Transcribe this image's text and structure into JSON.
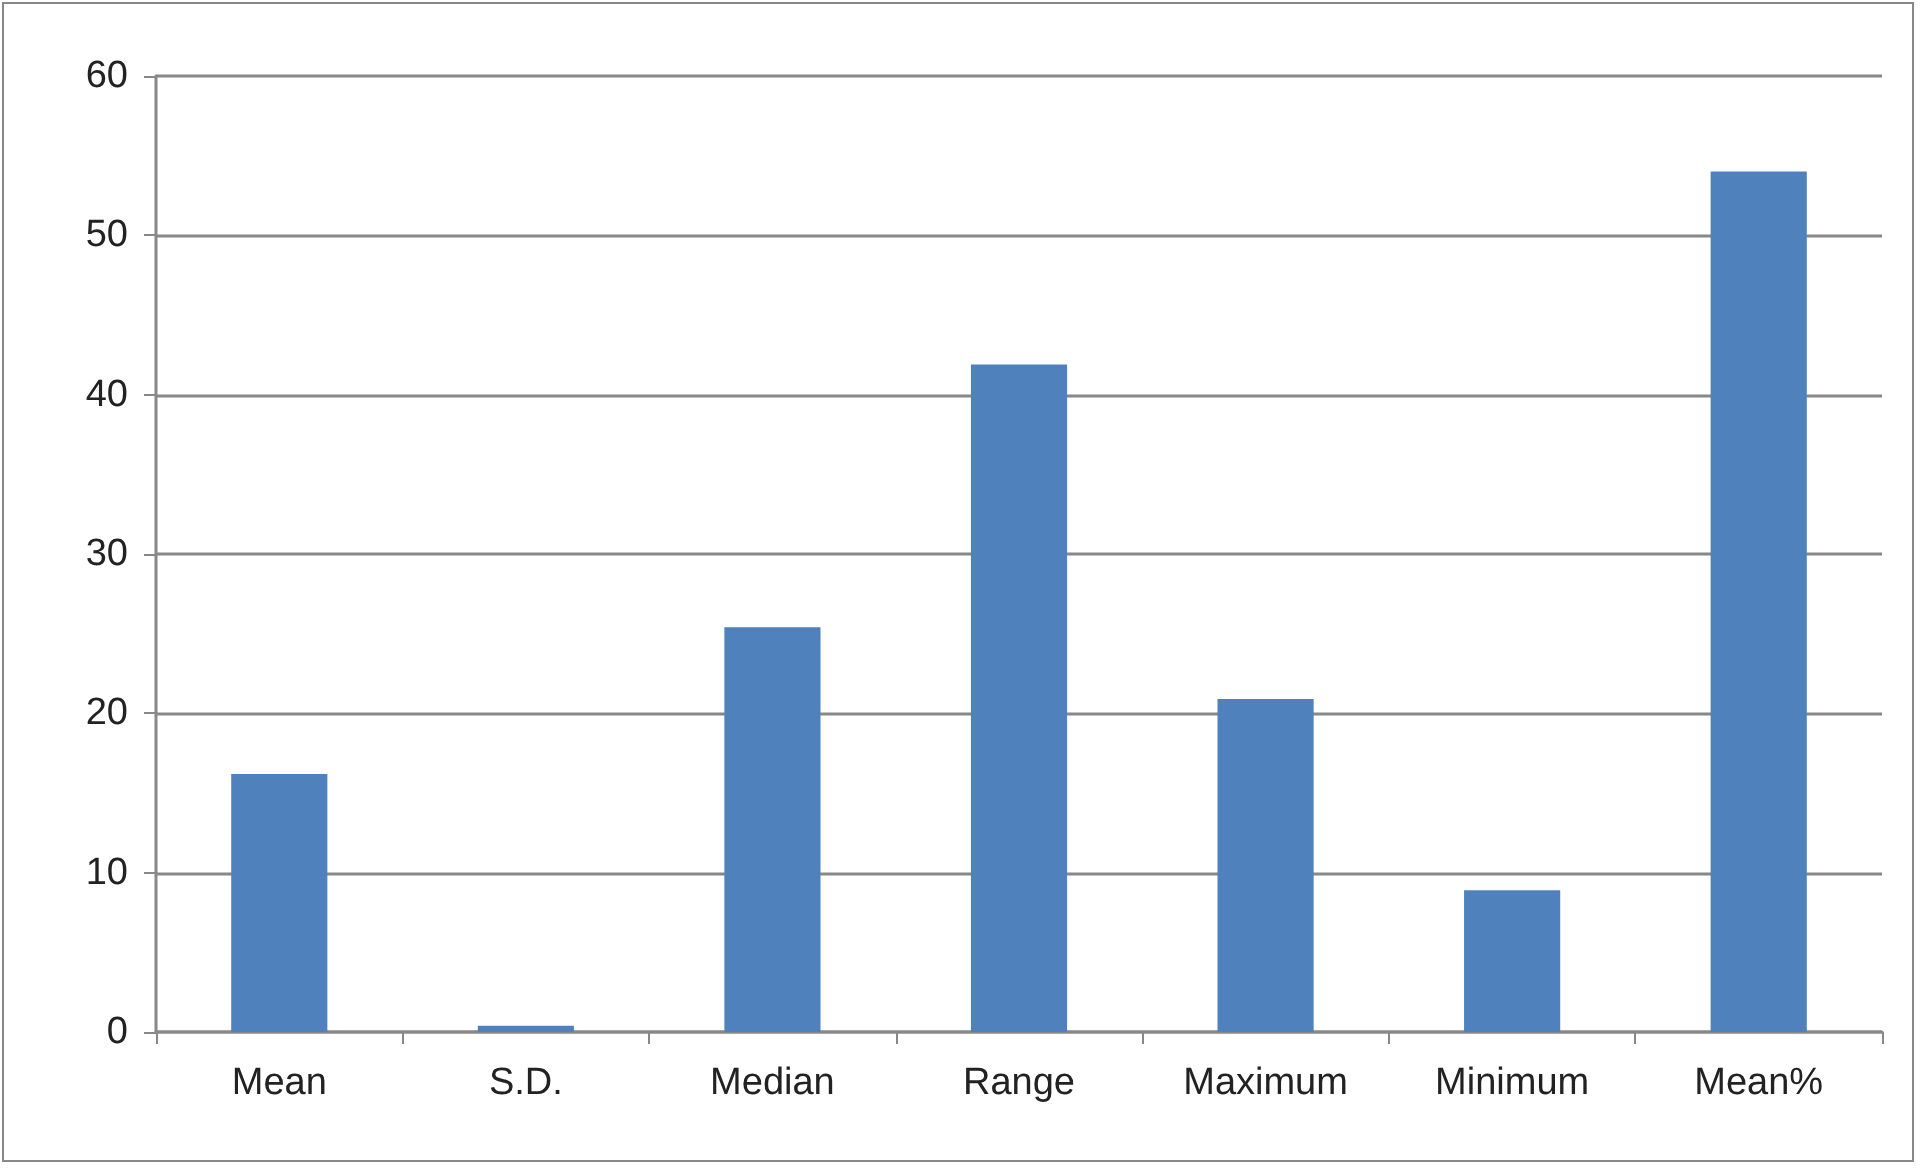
{
  "chart_data": {
    "type": "bar",
    "categories": [
      "Mean",
      "S.D.",
      "Median",
      "Range",
      "Maximum",
      "Minimum",
      "Mean%"
    ],
    "values": [
      16.2,
      0.4,
      25.4,
      41.9,
      20.9,
      8.9,
      54.0
    ],
    "color": "#4f81bd",
    "ylim": [
      0,
      60
    ],
    "yticks": [
      0,
      10,
      20,
      30,
      40,
      50,
      60
    ],
    "grid": "y"
  }
}
